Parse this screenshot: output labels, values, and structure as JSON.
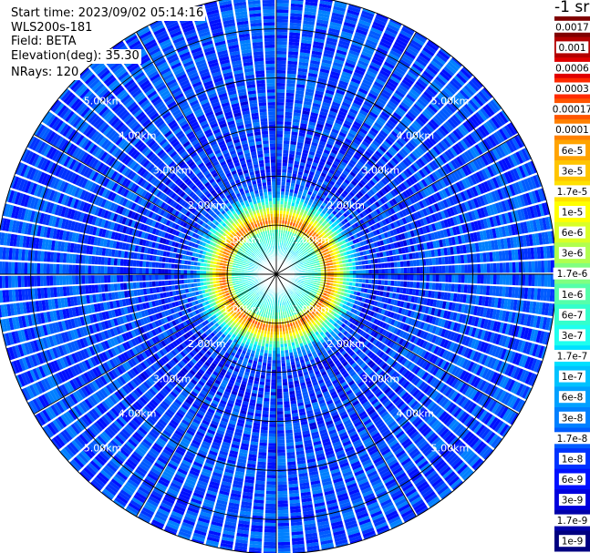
{
  "header": {
    "start_time": "Start time: 2023/09/02 05:14:16",
    "site": "WLS200s-181",
    "field": "Field: BETA",
    "elevation": "Elevation(deg): 35.30",
    "nrays": "NRays: 120"
  },
  "chart_data": {
    "type": "heatmap",
    "projection": "polar PPI",
    "field": "BETA",
    "units": "-1 sr",
    "range_rings_km": [
      1.0,
      2.0,
      3.0,
      4.0,
      5.0
    ],
    "ring_labels": [
      "1.00km",
      "2.00km",
      "3.00km",
      "4.00km",
      "5.00km"
    ],
    "max_range_km": 5.7,
    "n_rays": 120,
    "spoke_step_deg": 30,
    "colorbar": {
      "labels": [
        "0.0017",
        "0.001",
        "0.0006",
        "0.0003",
        "0.00017",
        "0.0001",
        "6e-5",
        "3e-5",
        "1.7e-5",
        "1e-5",
        "6e-6",
        "3e-6",
        "1.7e-6",
        "1e-6",
        "6e-7",
        "3e-7",
        "1.7e-7",
        "1e-7",
        "6e-8",
        "3e-8",
        "1.7e-8",
        "1e-8",
        "6e-9",
        "3e-9",
        "1.7e-9",
        "1e-9"
      ],
      "colors": [
        "#800000",
        "#b30000",
        "#e00000",
        "#ff2a00",
        "#ff5500",
        "#ff8000",
        "#ffa300",
        "#ffc400",
        "#ffe000",
        "#ffff00",
        "#d9ff26",
        "#b0ff4f",
        "#80ff80",
        "#55ffaa",
        "#33ffcc",
        "#1effee",
        "#00e0ff",
        "#00c2ff",
        "#00a0ff",
        "#0080ff",
        "#005cff",
        "#0033ff",
        "#0010ff",
        "#0000dd",
        "#0000aa",
        "#000080"
      ]
    },
    "profile": {
      "range_km": [
        0.0,
        0.5,
        0.9,
        1.05,
        1.15,
        1.3,
        1.7,
        2.0,
        3.0,
        4.0,
        5.7
      ],
      "log10_beta": [
        -6.7,
        -6.6,
        -6.1,
        -3.9,
        -4.3,
        -5.3,
        -7.6,
        -8.0,
        -7.9,
        -7.8,
        -7.8
      ]
    }
  }
}
